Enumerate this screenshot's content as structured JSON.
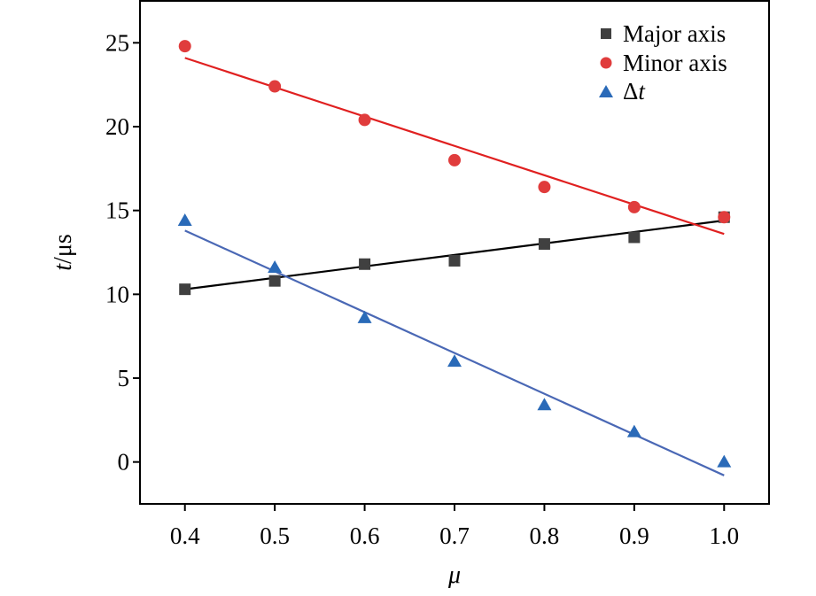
{
  "chart_data": {
    "type": "scatter",
    "title": "",
    "xlabel": "μ",
    "ylabel_italic": "t",
    "ylabel_rest": "/μs",
    "xlim": [
      0.35,
      1.05
    ],
    "ylim": [
      -2.5,
      27.5
    ],
    "x_ticks": [
      0.4,
      0.5,
      0.6,
      0.7,
      0.8,
      0.9,
      1.0
    ],
    "x_tick_labels": [
      "0.4",
      "0.5",
      "0.6",
      "0.7",
      "0.8",
      "0.9",
      "1.0"
    ],
    "y_ticks": [
      0,
      5,
      10,
      15,
      20,
      25
    ],
    "y_tick_labels": [
      "0",
      "5",
      "10",
      "15",
      "20",
      "25"
    ],
    "grid": false,
    "legend_position": "top-right",
    "x": [
      0.4,
      0.5,
      0.6,
      0.7,
      0.8,
      0.9,
      1.0
    ],
    "series": [
      {
        "name": "Major axis",
        "marker": "square",
        "marker_color": "#404040",
        "line_color": "#000000",
        "values": [
          10.3,
          10.8,
          11.8,
          12.0,
          13.0,
          13.4,
          14.6
        ],
        "fit": [
          10.3,
          14.4
        ]
      },
      {
        "name": "Minor axis",
        "marker": "circle",
        "marker_color": "#e03c3c",
        "line_color": "#e02020",
        "values": [
          24.8,
          22.4,
          20.4,
          18.0,
          16.4,
          15.2,
          14.6
        ],
        "fit": [
          24.1,
          13.6
        ]
      },
      {
        "name_symbol": "Δ",
        "name_italic": "t",
        "marker": "triangle",
        "marker_color": "#2a6ab8",
        "line_color": "#4a68b5",
        "values": [
          14.4,
          11.6,
          8.6,
          6.0,
          3.4,
          1.8,
          0.0
        ],
        "fit": [
          13.8,
          -0.8
        ]
      }
    ]
  }
}
